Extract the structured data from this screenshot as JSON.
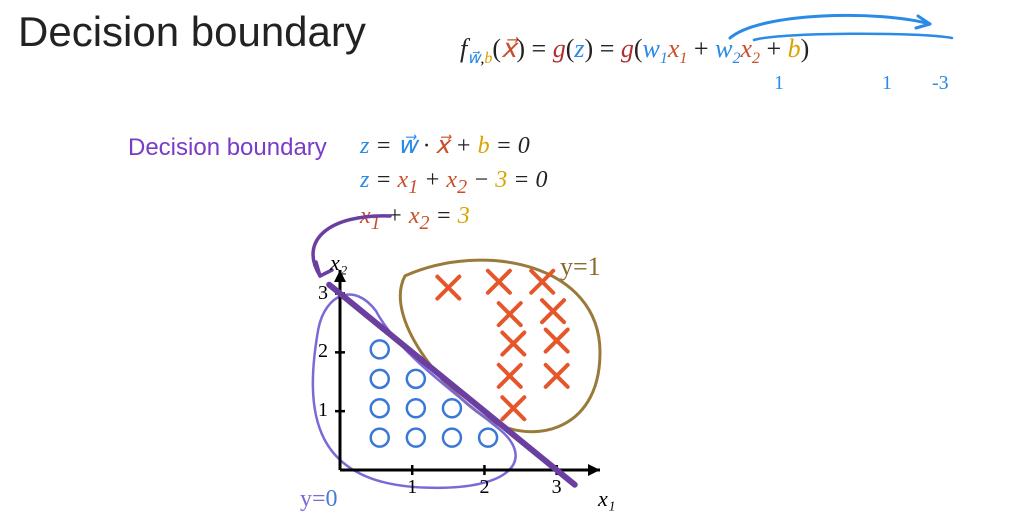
{
  "title": "Decision boundary",
  "equation_top": {
    "f": "f",
    "sub_w": "w",
    "sub_b": "b",
    "x_vec": "x",
    "g": "g",
    "z": "z",
    "w1": "w",
    "w1_sub": "1",
    "x1": "x",
    "x1_sub": "1",
    "w2": "w",
    "w2_sub": "2",
    "x2": "x",
    "x2_sub": "2",
    "b": "b",
    "hand_w1_val": "1",
    "hand_w2_val": "1",
    "hand_b_val": "-3"
  },
  "db_label": "Decision boundary",
  "eq_lines": {
    "line1_z": "z",
    "line1_w": "w",
    "line1_x": "x",
    "line1_b": "b",
    "line1_rhs": "0",
    "line2": {
      "z": "z",
      "x1": "x",
      "s1": "1",
      "x2": "x",
      "s2": "2",
      "c": "3",
      "rhs": "0"
    },
    "line3": {
      "x1": "x",
      "s1": "1",
      "x2": "x",
      "s2": "2",
      "rhs": "3"
    }
  },
  "plot": {
    "type": "scatter",
    "x_axis_label": "x₁",
    "y_axis_label": "x₂",
    "xlim": [
      0,
      3.6
    ],
    "ylim": [
      0,
      3.4
    ],
    "xticks": [
      1,
      2,
      3
    ],
    "yticks": [
      1,
      2,
      3
    ],
    "axis_color": "#000000",
    "axis_width": 3,
    "decision_line": {
      "p1": [
        0,
        3
      ],
      "p2": [
        3,
        0
      ],
      "color": "#6b3fa0",
      "width": 6
    },
    "circles": {
      "color": "#3a78d6",
      "stroke_width": 2.5,
      "radius": 9,
      "points": [
        [
          0.55,
          2.05
        ],
        [
          0.55,
          1.55
        ],
        [
          1.05,
          1.55
        ],
        [
          0.55,
          1.05
        ],
        [
          1.05,
          1.05
        ],
        [
          1.55,
          1.05
        ],
        [
          0.55,
          0.55
        ],
        [
          1.05,
          0.55
        ],
        [
          1.55,
          0.55
        ],
        [
          2.05,
          0.55
        ]
      ]
    },
    "crosses": {
      "color": "#e5562a",
      "stroke_width": 4,
      "size": 11,
      "points": [
        [
          1.5,
          3.1
        ],
        [
          2.2,
          3.2
        ],
        [
          2.8,
          3.2
        ],
        [
          2.35,
          2.65
        ],
        [
          2.95,
          2.7
        ],
        [
          2.4,
          2.15
        ],
        [
          3.0,
          2.2
        ],
        [
          2.35,
          1.6
        ],
        [
          3.0,
          1.6
        ],
        [
          2.4,
          1.05
        ]
      ]
    },
    "blob_y1": {
      "color": "#9a7a3a",
      "width": 3
    },
    "blob_y0": {
      "color": "#7a6ad6",
      "width": 2.5
    }
  },
  "labels": {
    "y1": "y=1",
    "y0_prefix": "y=",
    "y0_val": "0",
    "x1_axis": "x₁",
    "x2_axis": "x₂"
  },
  "colors": {
    "title": "#222222",
    "purple": "#7a3cc7",
    "blue": "#2a8ae6",
    "orange": "#c94f2a",
    "gold": "#d9a400",
    "darkred": "#b03030",
    "line_purple": "#6b3fa0",
    "circle_blue": "#3a78d6",
    "cross_orange": "#e5562a",
    "blob_brown": "#9a7a3a",
    "blob_lav": "#7a6ad6"
  }
}
